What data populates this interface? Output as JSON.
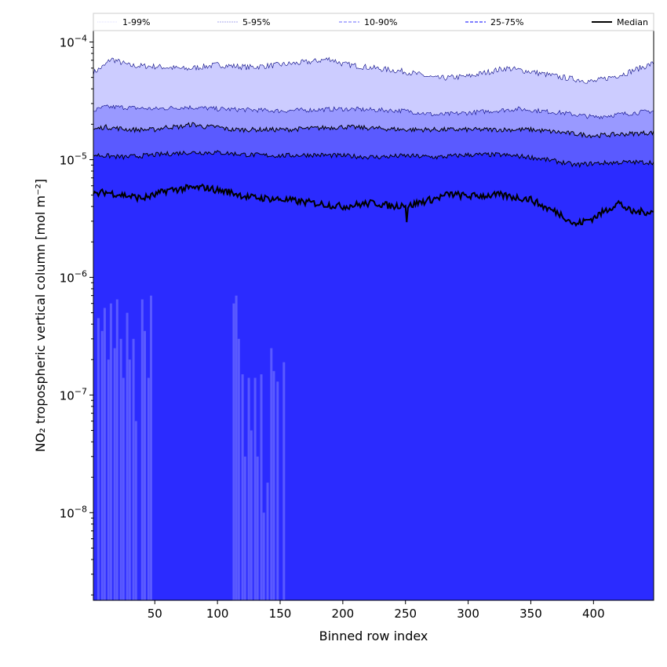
{
  "chart_data": {
    "type": "area",
    "xlabel": "Binned row index",
    "ylabel": "NO₂ tropospheric vertical column [mol m⁻²]",
    "xlim": [
      1,
      448
    ],
    "ylim": [
      1.8e-09,
      0.000125
    ],
    "yscale": "log",
    "x_ticks": [
      50,
      100,
      150,
      200,
      250,
      300,
      350,
      400
    ],
    "y_ticks": [
      1e-08,
      1e-07,
      1e-06,
      1e-05,
      0.0001
    ],
    "y_tick_labels": [
      {
        "base": "10",
        "exp": "−8"
      },
      {
        "base": "10",
        "exp": "−7"
      },
      {
        "base": "10",
        "exp": "−6"
      },
      {
        "base": "10",
        "exp": "−5"
      },
      {
        "base": "10",
        "exp": "−4"
      }
    ],
    "legend_position": "top",
    "legend": [
      "1-99%",
      "5-95%",
      "10-90%",
      "25-75%",
      "Median"
    ],
    "colors": {
      "band_1_99": "#ccccff",
      "band_5_95": "#9999ff",
      "band_10_90": "#5a5aff",
      "band_25_75": "#2b2bff",
      "line": "#000000",
      "legend_1_99": "#ddddff",
      "legend_5_95": "#aaaaee",
      "legend_10_90": "#8888ff",
      "legend_25_75": "#5555ff"
    },
    "series": [
      {
        "name": "1-99%",
        "x": [
          1,
          10,
          15,
          30,
          50,
          75,
          100,
          125,
          150,
          175,
          190,
          200,
          225,
          250,
          275,
          300,
          330,
          350,
          375,
          400,
          425,
          448
        ],
        "lower": [
          1.8e-09,
          1.8e-09,
          1.8e-09,
          1.8e-09,
          1.8e-09,
          1.8e-09,
          1.8e-09,
          1.8e-09,
          1.8e-09,
          1.8e-09,
          1.8e-09,
          1.8e-09,
          1.8e-09,
          1.8e-09,
          1.8e-09,
          1.8e-09,
          1.8e-09,
          1.8e-09,
          1.8e-09,
          1.8e-09,
          1.8e-09,
          1.8e-09
        ],
        "upper": [
          5.5e-05,
          6.3e-05,
          7.2e-05,
          6.3e-05,
          6.2e-05,
          5.9e-05,
          6.4e-05,
          6.1e-05,
          6.4e-05,
          6.8e-05,
          7.2e-05,
          6.5e-05,
          6e-05,
          5.6e-05,
          4.9e-05,
          5.1e-05,
          6e-05,
          5.6e-05,
          5e-05,
          4.6e-05,
          5.4e-05,
          6.6e-05
        ]
      },
      {
        "name": "5-95%",
        "x": [
          1,
          10,
          20,
          50,
          75,
          100,
          150,
          200,
          250,
          275,
          300,
          340,
          375,
          400,
          448
        ],
        "lower": [
          1.8e-09,
          1.8e-09,
          1.8e-09,
          1.8e-09,
          1.8e-09,
          1.8e-09,
          1.8e-09,
          1.8e-09,
          1.8e-09,
          1.8e-09,
          1.8e-09,
          1.8e-09,
          1.8e-09,
          1.8e-09,
          1.8e-09
        ],
        "upper": [
          2.6e-05,
          2.8e-05,
          2.8e-05,
          2.7e-05,
          2.8e-05,
          2.7e-05,
          2.6e-05,
          2.7e-05,
          2.6e-05,
          2.4e-05,
          2.5e-05,
          2.7e-05,
          2.5e-05,
          2.3e-05,
          2.6e-05
        ]
      },
      {
        "name": "10-90%",
        "x": [
          1,
          10,
          30,
          50,
          60,
          70,
          80,
          90,
          100,
          110,
          120,
          130,
          140,
          150,
          155,
          200,
          250,
          300,
          350,
          375,
          400,
          448
        ],
        "lower": [
          1.8e-09,
          1.8e-09,
          1.8e-09,
          1.8e-09,
          8e-07,
          1.1e-06,
          1.2e-06,
          1.2e-06,
          8e-07,
          5e-07,
          1.8e-09,
          1.8e-09,
          1.8e-09,
          1.8e-09,
          1.8e-09,
          1.8e-09,
          1.8e-09,
          1.8e-09,
          1.8e-09,
          1.8e-09,
          1.8e-09,
          1.8e-09
        ],
        "upper": [
          1.8e-05,
          1.9e-05,
          1.8e-05,
          1.8e-05,
          1.9e-05,
          1.9e-05,
          2e-05,
          1.9e-05,
          1.9e-05,
          1.8e-05,
          1.8e-05,
          1.8e-05,
          1.8e-05,
          1.8e-05,
          1.8e-05,
          1.9e-05,
          1.8e-05,
          1.8e-05,
          1.8e-05,
          1.7e-05,
          1.6e-05,
          1.7e-05
        ]
      },
      {
        "name": "25-75%",
        "x": [
          1,
          25,
          50,
          75,
          100,
          125,
          150,
          175,
          200,
          225,
          250,
          275,
          300,
          325,
          350,
          375,
          385,
          400,
          425,
          448
        ],
        "lower": [
          1.8e-09,
          1.8e-09,
          1.8e-09,
          1.8e-09,
          1.8e-09,
          1.8e-09,
          1.8e-09,
          1.8e-09,
          1.8e-09,
          1.8e-09,
          1.8e-09,
          1.8e-09,
          1.8e-09,
          1.8e-09,
          1.8e-09,
          1.8e-09,
          1.8e-09,
          1.8e-09,
          1.8e-09,
          1.8e-09
        ],
        "upper": [
          1.1e-05,
          1.05e-05,
          1.1e-05,
          1.15e-05,
          1.15e-05,
          1.1e-05,
          1.08e-05,
          1.1e-05,
          1.08e-05,
          1.05e-05,
          1.08e-05,
          1.05e-05,
          1.1e-05,
          1.1e-05,
          1.05e-05,
          9.5e-06,
          9e-06,
          9.3e-06,
          9.5e-06,
          9.5e-06
        ]
      },
      {
        "name": "Median",
        "x": [
          1,
          10,
          25,
          40,
          50,
          60,
          75,
          90,
          100,
          110,
          125,
          150,
          175,
          200,
          225,
          240,
          250,
          251,
          252,
          260,
          275,
          285,
          300,
          325,
          350,
          360,
          375,
          385,
          400,
          420,
          430,
          448
        ],
        "values": [
          5e-06,
          5.3e-06,
          5e-06,
          4.7e-06,
          5e-06,
          5.5e-06,
          5.7e-06,
          5.8e-06,
          5.5e-06,
          5.3e-06,
          4.8e-06,
          4.6e-06,
          4.3e-06,
          4e-06,
          4.3e-06,
          4e-06,
          4.2e-06,
          3e-06,
          4e-06,
          4.3e-06,
          4.7e-06,
          5.1e-06,
          4.9e-06,
          5e-06,
          4.6e-06,
          4e-06,
          3.4e-06,
          2.8e-06,
          3.2e-06,
          4.3e-06,
          3.6e-06,
          3.6e-06
        ]
      }
    ],
    "spikes_10_90": {
      "x": [
        5,
        8,
        10,
        13,
        15,
        18,
        20,
        23,
        25,
        28,
        30,
        33,
        35,
        40,
        42,
        45,
        47,
        113,
        115,
        117,
        120,
        122,
        125,
        127,
        130,
        132,
        135,
        137,
        140,
        143,
        145,
        148,
        153
      ],
      "values": [
        4.5e-07,
        3.5e-07,
        5.5e-07,
        2e-07,
        6e-07,
        2.5e-07,
        6.5e-07,
        3e-07,
        1.4e-07,
        5e-07,
        2e-07,
        3e-07,
        6e-08,
        6.5e-07,
        3.5e-07,
        1.4e-07,
        7e-07,
        6e-07,
        7e-07,
        3e-07,
        1.5e-07,
        3e-08,
        1.4e-07,
        5e-08,
        1.4e-07,
        3e-08,
        1.5e-07,
        1e-08,
        1.8e-08,
        2.5e-07,
        1.6e-07,
        1.3e-07,
        1.9e-07
      ]
    }
  }
}
